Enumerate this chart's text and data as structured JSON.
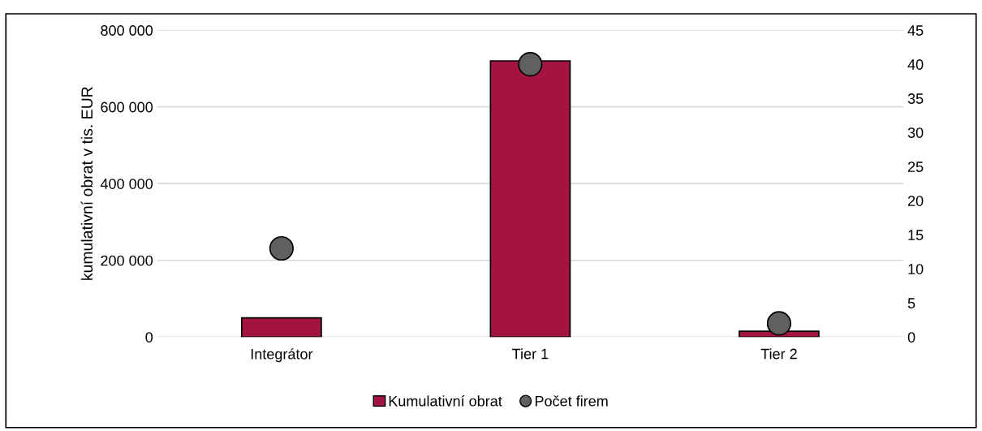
{
  "chart_data": {
    "type": "bar",
    "ylabel": "kumulativní obrat v tis. EUR",
    "categories": [
      "Integrátor",
      "Tier 1",
      "Tier 2"
    ],
    "series": [
      {
        "name": "Kumulativní obrat",
        "color": "#a31441",
        "values": [
          50000,
          720000,
          15000
        ]
      },
      {
        "name": "Počet firem",
        "type": "scatter",
        "axis": "y2",
        "color": "#606060",
        "marker": "circle",
        "values": [
          13,
          40,
          2
        ]
      }
    ],
    "ylim": [
      0,
      800000
    ],
    "yticks": [
      {
        "value": 0,
        "label": "0"
      },
      {
        "value": 200000,
        "label": "200 000"
      },
      {
        "value": 400000,
        "label": "400 000"
      },
      {
        "value": 600000,
        "label": "600 000"
      },
      {
        "value": 800000,
        "label": "800 000"
      }
    ],
    "y2lim": [
      0,
      45
    ],
    "y2ticks": [
      0,
      5,
      10,
      15,
      20,
      25,
      30,
      35,
      40,
      45
    ],
    "grid": "y",
    "legend": "bottom"
  }
}
